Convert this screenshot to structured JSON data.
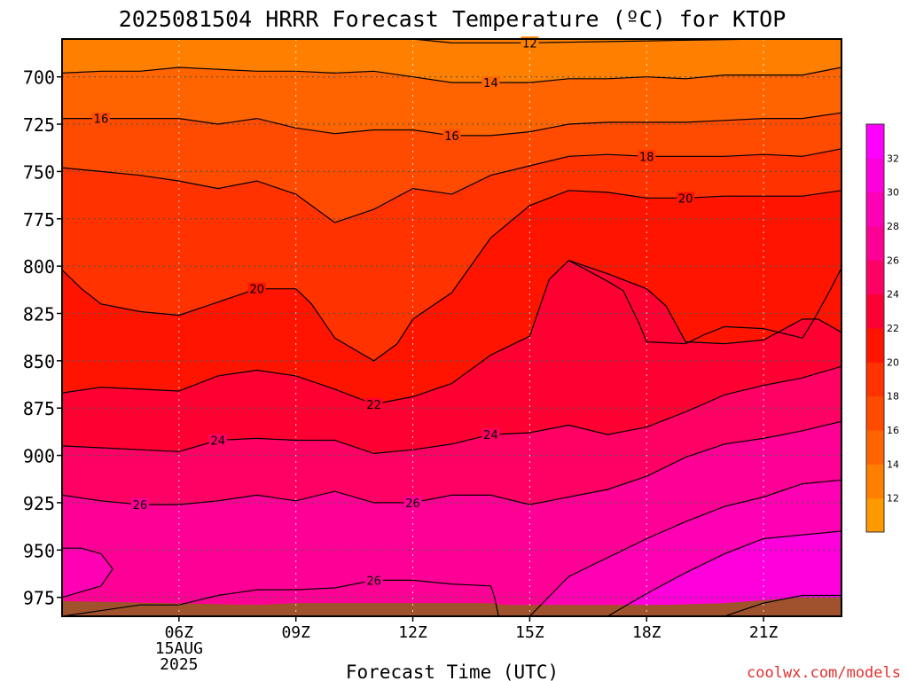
{
  "chart_data": {
    "type": "contour",
    "title": "2025081504 HRRR Forecast Temperature (ºC) for KTOP",
    "xlabel": "Forecast Time (UTC)",
    "ylabel": "",
    "credit": "coolwx.com/models",
    "x_range_hours": [
      3,
      23
    ],
    "y_range_hpa": [
      680,
      985
    ],
    "y_scale": "pressure (inverted)",
    "grid": true,
    "x_ticks": [
      {
        "hour": 6,
        "lines": [
          "06Z",
          "15AUG",
          "2025"
        ]
      },
      {
        "hour": 9,
        "lines": [
          "09Z"
        ]
      },
      {
        "hour": 12,
        "lines": [
          "12Z"
        ]
      },
      {
        "hour": 15,
        "lines": [
          "15Z"
        ]
      },
      {
        "hour": 18,
        "lines": [
          "18Z"
        ]
      },
      {
        "hour": 21,
        "lines": [
          "21Z"
        ]
      }
    ],
    "y_ticks": [
      700,
      725,
      750,
      775,
      800,
      825,
      850,
      875,
      900,
      925,
      950,
      975
    ],
    "colorbar": {
      "placement": "right",
      "levels": [
        10,
        12,
        14,
        16,
        18,
        20,
        22,
        24,
        26,
        28,
        30,
        32,
        34
      ],
      "labels": [
        12,
        14,
        16,
        18,
        20,
        22,
        24,
        26,
        28,
        30,
        32
      ],
      "colors": [
        "#ff9900",
        "#ff7f00",
        "#ff6400",
        "#ff4b00",
        "#ff3200",
        "#ff1400",
        "#ff0032",
        "#ff0064",
        "#ff0096",
        "#ff00b4",
        "#ff00dc",
        "#ff00ff"
      ]
    },
    "ground_color": "#a0522d",
    "background_fill": "#ff8000",
    "contours": [
      {
        "level": 12,
        "points": [
          [
            8.7,
            680
          ],
          [
            11.0,
            680
          ],
          [
            12.0,
            680
          ],
          [
            13.0,
            682
          ],
          [
            15.0,
            682
          ],
          [
            18.0,
            681
          ],
          [
            21.0,
            680
          ],
          [
            23.0,
            680
          ]
        ]
      },
      {
        "level": 14,
        "points": [
          [
            3,
            698
          ],
          [
            4,
            697
          ],
          [
            5,
            697
          ],
          [
            6,
            695
          ],
          [
            7,
            696
          ],
          [
            8,
            697
          ],
          [
            9,
            697
          ],
          [
            10,
            698
          ],
          [
            11,
            697
          ],
          [
            12,
            700
          ],
          [
            13,
            703
          ],
          [
            14,
            703
          ],
          [
            15,
            703
          ],
          [
            16,
            701
          ],
          [
            17,
            701
          ],
          [
            18,
            700
          ],
          [
            19,
            701
          ],
          [
            20,
            699
          ],
          [
            21,
            699
          ],
          [
            22,
            699
          ],
          [
            23,
            695
          ]
        ]
      },
      {
        "level": 16,
        "points": [
          [
            3,
            722
          ],
          [
            4,
            722
          ],
          [
            5,
            722
          ],
          [
            6,
            722
          ],
          [
            7,
            725
          ],
          [
            8,
            722
          ],
          [
            9,
            727
          ],
          [
            10,
            730
          ],
          [
            11,
            728
          ],
          [
            12,
            728
          ],
          [
            13,
            731
          ],
          [
            14,
            731
          ],
          [
            15,
            729
          ],
          [
            16,
            725
          ],
          [
            17,
            724
          ],
          [
            18,
            724
          ],
          [
            19,
            724
          ],
          [
            20,
            723
          ],
          [
            21,
            722
          ],
          [
            22,
            722
          ],
          [
            23,
            719
          ]
        ]
      },
      {
        "level": 18,
        "points": [
          [
            3,
            748
          ],
          [
            4,
            750
          ],
          [
            5,
            752
          ],
          [
            6,
            755
          ],
          [
            7,
            759
          ],
          [
            8,
            755
          ],
          [
            9,
            762
          ],
          [
            10,
            777
          ],
          [
            11,
            770
          ],
          [
            12,
            759
          ],
          [
            13,
            762
          ],
          [
            14,
            752
          ],
          [
            15,
            747
          ],
          [
            16,
            742
          ],
          [
            17,
            741
          ],
          [
            18,
            742
          ],
          [
            19,
            742
          ],
          [
            20,
            742
          ],
          [
            21,
            741
          ],
          [
            22,
            742
          ],
          [
            23,
            738
          ]
        ]
      },
      {
        "level": 20,
        "points": [
          [
            3,
            802
          ],
          [
            3.5,
            812
          ],
          [
            4,
            820
          ],
          [
            5,
            824
          ],
          [
            6,
            826
          ],
          [
            7,
            819
          ],
          [
            8,
            812
          ],
          [
            9,
            812
          ],
          [
            9.4,
            820
          ],
          [
            10,
            838
          ],
          [
            11,
            850
          ],
          [
            11.6,
            841
          ],
          [
            12,
            828
          ],
          [
            13,
            814
          ],
          [
            14,
            785
          ],
          [
            15,
            768
          ],
          [
            16,
            760
          ],
          [
            17,
            761
          ],
          [
            18,
            764
          ],
          [
            19,
            764
          ],
          [
            20,
            763
          ],
          [
            21,
            763
          ],
          [
            22,
            763
          ],
          [
            23,
            760
          ]
        ]
      },
      {
        "level": 22,
        "points": [
          [
            3,
            867
          ],
          [
            4,
            864
          ],
          [
            5,
            865
          ],
          [
            6,
            866
          ],
          [
            7,
            858
          ],
          [
            8,
            855
          ],
          [
            9,
            858
          ],
          [
            10,
            865
          ],
          [
            11,
            873
          ],
          [
            12,
            869
          ],
          [
            13,
            862
          ],
          [
            14,
            847
          ],
          [
            15,
            837
          ],
          [
            15.5,
            807
          ],
          [
            16,
            797
          ],
          [
            17,
            804
          ],
          [
            18,
            812
          ],
          [
            18.5,
            821
          ],
          [
            19,
            840
          ],
          [
            20,
            841
          ],
          [
            21,
            839
          ],
          [
            22,
            828
          ],
          [
            22.4,
            828
          ],
          [
            23,
            835
          ],
          [
            23.6,
            807
          ],
          [
            24,
            797
          ]
        ]
      },
      {
        "level": 22,
        "points": [
          [
            16,
            797
          ],
          [
            17,
            808
          ],
          [
            17.4,
            813
          ],
          [
            17.8,
            830
          ],
          [
            18,
            840
          ],
          [
            19,
            841
          ],
          [
            19.5,
            836
          ],
          [
            20,
            832
          ],
          [
            21,
            833
          ],
          [
            22,
            838
          ],
          [
            22.3,
            828
          ],
          [
            22.7,
            813
          ],
          [
            23,
            801
          ]
        ]
      },
      {
        "level": 24,
        "points": [
          [
            3,
            895
          ],
          [
            4,
            896
          ],
          [
            5,
            897
          ],
          [
            6,
            898
          ],
          [
            7,
            892
          ],
          [
            8,
            891
          ],
          [
            9,
            892
          ],
          [
            10,
            892
          ],
          [
            11,
            899
          ],
          [
            12,
            897
          ],
          [
            13,
            894
          ],
          [
            14,
            889
          ],
          [
            15,
            888
          ],
          [
            16,
            884
          ],
          [
            17,
            889
          ],
          [
            18,
            885
          ],
          [
            19,
            877
          ],
          [
            20,
            868
          ],
          [
            21,
            863
          ],
          [
            22,
            859
          ],
          [
            23,
            853
          ]
        ]
      },
      {
        "level": 26,
        "points": [
          [
            3,
            921
          ],
          [
            4,
            924
          ],
          [
            5,
            926
          ],
          [
            6,
            926
          ],
          [
            7,
            924
          ],
          [
            8,
            921
          ],
          [
            9,
            924
          ],
          [
            10,
            919
          ],
          [
            11,
            925
          ],
          [
            12,
            925
          ],
          [
            13,
            921
          ],
          [
            14,
            921
          ],
          [
            15,
            926
          ],
          [
            16,
            922
          ],
          [
            17,
            918
          ],
          [
            18,
            911
          ],
          [
            19,
            901
          ],
          [
            20,
            894
          ],
          [
            21,
            891
          ],
          [
            22,
            887
          ],
          [
            23,
            882
          ]
        ]
      },
      {
        "level": 28,
        "points": [
          [
            15,
            985
          ],
          [
            16,
            964
          ],
          [
            17,
            954
          ],
          [
            18,
            944
          ],
          [
            19,
            935
          ],
          [
            20,
            927
          ],
          [
            21,
            922
          ],
          [
            22,
            915
          ],
          [
            23,
            913
          ]
        ]
      },
      {
        "level": 30,
        "points": [
          [
            17,
            985
          ],
          [
            18,
            973
          ],
          [
            19,
            962
          ],
          [
            20,
            952
          ],
          [
            21,
            944
          ],
          [
            22,
            942
          ],
          [
            23,
            940
          ]
        ]
      },
      {
        "level": 32,
        "points": [
          [
            20,
            985
          ],
          [
            21,
            978
          ],
          [
            22,
            974
          ],
          [
            23,
            974
          ]
        ]
      },
      {
        "level": 28,
        "points": [
          [
            3,
            975
          ],
          [
            4,
            969
          ],
          [
            4.3,
            960
          ],
          [
            4,
            952
          ],
          [
            3.5,
            949
          ],
          [
            3,
            949
          ]
        ]
      },
      {
        "level": 26,
        "points": [
          [
            3,
            985
          ],
          [
            5,
            979
          ],
          [
            6,
            979
          ],
          [
            7,
            974
          ],
          [
            8,
            971
          ],
          [
            9,
            971
          ],
          [
            10,
            970
          ],
          [
            11,
            966
          ],
          [
            12,
            966
          ],
          [
            13,
            968
          ],
          [
            14,
            969
          ],
          [
            14.1,
            975
          ],
          [
            14.2,
            985
          ]
        ]
      }
    ],
    "contour_labels": [
      {
        "text": "12",
        "hour": 15.0,
        "p": 682
      },
      {
        "text": "14",
        "hour": 14.0,
        "p": 703
      },
      {
        "text": "16",
        "hour": 4.0,
        "p": 722
      },
      {
        "text": "16",
        "hour": 13.0,
        "p": 731
      },
      {
        "text": "18",
        "hour": 18.0,
        "p": 742
      },
      {
        "text": "20",
        "hour": 19.0,
        "p": 764
      },
      {
        "text": "20",
        "hour": 8.0,
        "p": 812
      },
      {
        "text": "22",
        "hour": 11.0,
        "p": 873
      },
      {
        "text": "24",
        "hour": 7.0,
        "p": 892
      },
      {
        "text": "24",
        "hour": 14.0,
        "p": 889
      },
      {
        "text": "26",
        "hour": 5.0,
        "p": 926
      },
      {
        "text": "26",
        "hour": 12.0,
        "p": 925
      },
      {
        "text": "26",
        "hour": 11.0,
        "p": 966
      }
    ]
  }
}
